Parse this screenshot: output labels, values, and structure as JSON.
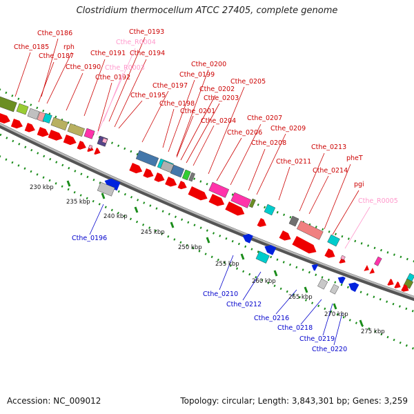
{
  "title": "Clostridium thermocellum ATCC 27405, complete genome",
  "footer": {
    "accession": "Accession: NC_009012",
    "summary": "Topology: circular; Length: 3,843,301 bp; Genes: 3,259"
  },
  "colors": {
    "forward_label": "#cc0000",
    "reverse_label": "#0000cc",
    "rna_label": "#ff99cc",
    "backbone": "#888888",
    "dots": "#1a8c1a"
  },
  "ticks": [
    "230 kbp",
    "235 kbp",
    "240 kbp",
    "245 kbp",
    "250 kbp",
    "255 kbp",
    "260 kbp",
    "265 kbp",
    "270 kbp",
    "275 kbp"
  ],
  "labels_forward": [
    "Cthe_0186",
    "Cthe_0185",
    "rph",
    "Cthe_0187",
    "Cthe_0190",
    "Cthe_0191",
    "Cthe_0192",
    "Cthe_0193",
    "Cthe_0194",
    "Cthe_0195",
    "Cthe_0197",
    "Cthe_0198",
    "Cthe_0199",
    "Cthe_0200",
    "Cthe_0201",
    "Cthe_0202",
    "Cthe_0203",
    "Cthe_0204",
    "Cthe_0205",
    "Cthe_0206",
    "Cthe_0207",
    "Cthe_0208",
    "Cthe_0209",
    "Cthe_0211",
    "Cthe_0213",
    "Cthe_0214",
    "pheT",
    "pgi"
  ],
  "labels_rna": [
    "Cthe_R0004",
    "Cthe_R0003",
    "Cthe_R0005"
  ],
  "labels_reverse": [
    "Cthe_0196",
    "Cthe_0210",
    "Cthe_0212",
    "Cthe_0216",
    "Cthe_0218",
    "Cthe_0219",
    "Cthe_0220"
  ]
}
